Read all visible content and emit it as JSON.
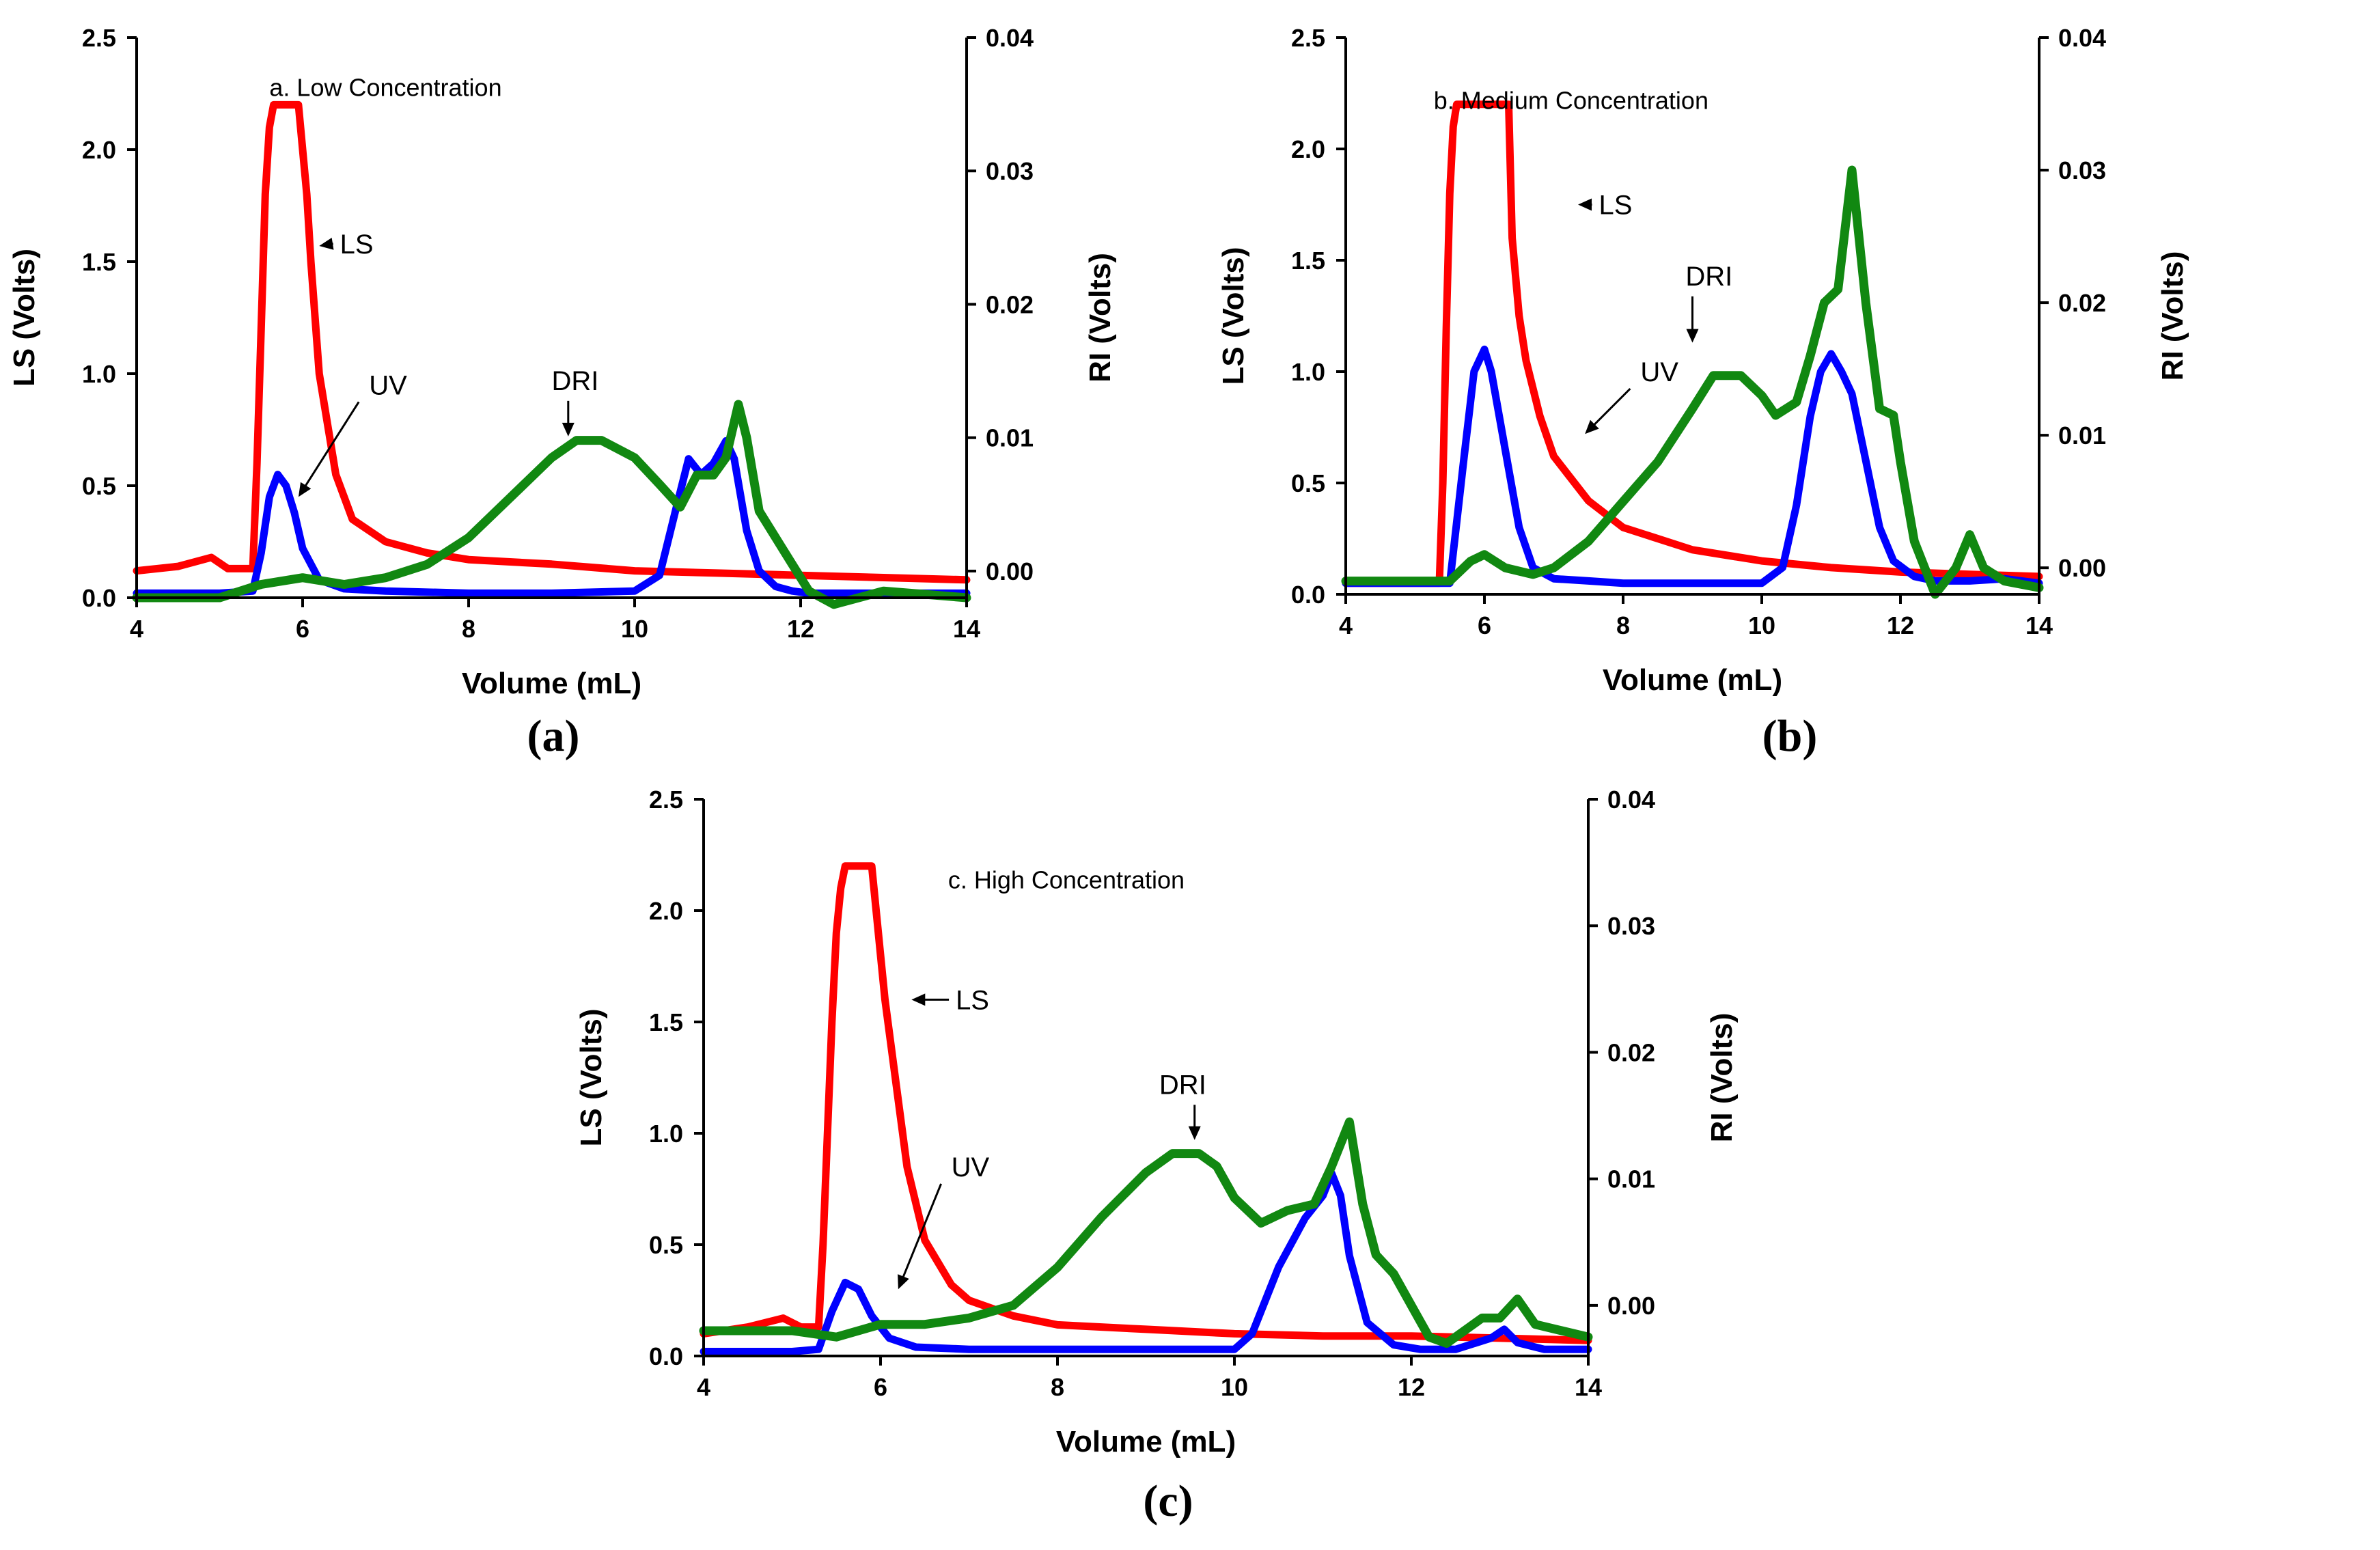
{
  "figure": {
    "captions": [
      "(a)",
      "(b)",
      "(c)"
    ]
  },
  "colors": {
    "LS": "#ff0000",
    "UV": "#0000ff",
    "DRI": "#118811"
  },
  "chart_data": [
    {
      "type": "line",
      "title": "a. Low Concentration",
      "xlabel": "Volume (mL)",
      "ylabel": "LS (Volts)",
      "y2label": "RI (Volts)",
      "xlim": [
        4,
        14
      ],
      "ylim": [
        0,
        2.5
      ],
      "y2lim": [
        -0.002,
        0.04
      ],
      "xticks": [
        "4",
        "6",
        "8",
        "10",
        "12",
        "14"
      ],
      "yticks": [
        "0.0",
        "0.5",
        "1.0",
        "1.5",
        "2.0",
        "2.5"
      ],
      "y2ticks": [
        "0.00",
        "0.01",
        "0.02",
        "0.03",
        "0.04"
      ],
      "series": [
        {
          "name": "LS",
          "axis": "left",
          "x": [
            4.0,
            4.5,
            4.9,
            5.1,
            5.4,
            5.45,
            5.5,
            5.55,
            5.6,
            5.65,
            5.7,
            5.75,
            5.85,
            5.95,
            6.05,
            6.1,
            6.2,
            6.4,
            6.6,
            7.0,
            7.5,
            8.0,
            9.0,
            10.0,
            11.0,
            12.0,
            13.0,
            14.0
          ],
          "values": [
            0.12,
            0.14,
            0.18,
            0.13,
            0.13,
            0.6,
            1.2,
            1.8,
            2.1,
            2.2,
            2.2,
            2.2,
            2.2,
            2.2,
            1.8,
            1.5,
            1.0,
            0.55,
            0.35,
            0.25,
            0.2,
            0.17,
            0.15,
            0.12,
            0.11,
            0.1,
            0.09,
            0.08
          ]
        },
        {
          "name": "UV",
          "axis": "left",
          "x": [
            4.0,
            5.0,
            5.4,
            5.5,
            5.6,
            5.7,
            5.8,
            5.9,
            6.0,
            6.2,
            6.5,
            7.0,
            8.0,
            9.0,
            10.0,
            10.3,
            10.5,
            10.65,
            10.8,
            10.95,
            11.1,
            11.2,
            11.35,
            11.5,
            11.7,
            11.9,
            12.1,
            12.5,
            13.0,
            14.0
          ],
          "values": [
            0.02,
            0.02,
            0.03,
            0.2,
            0.45,
            0.55,
            0.5,
            0.38,
            0.22,
            0.08,
            0.04,
            0.03,
            0.02,
            0.02,
            0.03,
            0.1,
            0.4,
            0.62,
            0.55,
            0.6,
            0.7,
            0.62,
            0.3,
            0.12,
            0.05,
            0.03,
            0.02,
            0.02,
            0.02,
            0.02
          ]
        },
        {
          "name": "DRI",
          "axis": "right",
          "x": [
            4.0,
            5.0,
            5.5,
            6.0,
            6.5,
            7.0,
            7.5,
            8.0,
            8.5,
            9.0,
            9.3,
            9.6,
            10.0,
            10.3,
            10.55,
            10.75,
            10.95,
            11.1,
            11.25,
            11.35,
            11.5,
            11.7,
            11.9,
            12.1,
            12.4,
            13.0,
            14.0
          ],
          "values": [
            -0.002,
            -0.002,
            -0.001,
            -0.0005,
            -0.001,
            -0.0005,
            0.0005,
            0.0025,
            0.0055,
            0.0085,
            0.0098,
            0.0098,
            0.0085,
            0.0065,
            0.0048,
            0.0072,
            0.0072,
            0.0085,
            0.0125,
            0.01,
            0.0045,
            0.0025,
            0.0005,
            -0.0015,
            -0.0025,
            -0.0015,
            -0.002
          ]
        }
      ],
      "annotations": [
        {
          "text": "LS",
          "arrow": "left"
        },
        {
          "text": "UV",
          "arrow": "down-left"
        },
        {
          "text": "DRI",
          "arrow": "down"
        }
      ]
    },
    {
      "type": "line",
      "title": "b. Medium Concentration",
      "xlabel": "Volume (mL)",
      "ylabel": "LS (Volts)",
      "y2label": "RI (Volts)",
      "xlim": [
        4,
        14
      ],
      "ylim": [
        0,
        2.5
      ],
      "y2lim": [
        -0.002,
        0.04
      ],
      "xticks": [
        "4",
        "6",
        "8",
        "10",
        "12",
        "14"
      ],
      "yticks": [
        "0.0",
        "0.5",
        "1.0",
        "1.5",
        "2.0",
        "2.5"
      ],
      "y2ticks": [
        "0.00",
        "0.01",
        "0.02",
        "0.03",
        "0.04"
      ],
      "series": [
        {
          "name": "LS",
          "axis": "left",
          "x": [
            4.0,
            5.0,
            5.35,
            5.4,
            5.45,
            5.5,
            5.55,
            5.6,
            5.7,
            6.0,
            6.2,
            6.35,
            6.4,
            6.5,
            6.6,
            6.8,
            7.0,
            7.5,
            8.0,
            9.0,
            10.0,
            11.0,
            12.0,
            13.0,
            14.0
          ],
          "values": [
            0.05,
            0.05,
            0.05,
            0.5,
            1.2,
            1.8,
            2.1,
            2.2,
            2.2,
            2.2,
            2.2,
            2.2,
            1.6,
            1.25,
            1.05,
            0.8,
            0.62,
            0.42,
            0.3,
            0.2,
            0.15,
            0.12,
            0.1,
            0.09,
            0.08
          ]
        },
        {
          "name": "UV",
          "axis": "left",
          "x": [
            4.0,
            5.5,
            5.7,
            5.85,
            6.0,
            6.1,
            6.3,
            6.5,
            6.7,
            7.0,
            7.5,
            8.0,
            9.0,
            10.0,
            10.3,
            10.5,
            10.7,
            10.85,
            11.0,
            11.15,
            11.3,
            11.5,
            11.7,
            11.9,
            12.2,
            12.5,
            13.0,
            13.5,
            14.0
          ],
          "values": [
            0.05,
            0.05,
            0.6,
            1.0,
            1.1,
            1.0,
            0.65,
            0.3,
            0.12,
            0.07,
            0.06,
            0.05,
            0.05,
            0.05,
            0.12,
            0.4,
            0.8,
            1.0,
            1.08,
            1.0,
            0.9,
            0.6,
            0.3,
            0.15,
            0.08,
            0.06,
            0.06,
            0.07,
            0.05
          ]
        },
        {
          "name": "DRI",
          "axis": "right",
          "x": [
            4.0,
            5.0,
            5.5,
            5.8,
            6.0,
            6.3,
            6.7,
            7.0,
            7.5,
            8.0,
            8.5,
            9.0,
            9.3,
            9.7,
            10.0,
            10.2,
            10.5,
            10.7,
            10.9,
            11.1,
            11.3,
            11.5,
            11.7,
            11.9,
            12.0,
            12.2,
            12.5,
            12.8,
            13.0,
            13.2,
            13.5,
            14.0
          ],
          "values": [
            -0.001,
            -0.001,
            -0.001,
            0.0005,
            0.001,
            0.0,
            -0.0005,
            0.0,
            0.002,
            0.005,
            0.008,
            0.012,
            0.0145,
            0.0145,
            0.013,
            0.0115,
            0.0125,
            0.016,
            0.02,
            0.021,
            0.03,
            0.02,
            0.012,
            0.0115,
            0.008,
            0.002,
            -0.002,
            0.0,
            0.0025,
            0.0,
            -0.001,
            -0.0015
          ]
        }
      ],
      "annotations": [
        {
          "text": "LS",
          "arrow": "left"
        },
        {
          "text": "UV",
          "arrow": "down-left"
        },
        {
          "text": "DRI",
          "arrow": "down"
        }
      ]
    },
    {
      "type": "line",
      "title": "c. High Concentration",
      "xlabel": "Volume (mL)",
      "ylabel": "LS (Volts)",
      "y2label": "RI (Volts)",
      "xlim": [
        4,
        14
      ],
      "ylim": [
        0,
        2.5
      ],
      "y2lim": [
        -0.004,
        0.04
      ],
      "xticks": [
        "4",
        "6",
        "8",
        "10",
        "12",
        "14"
      ],
      "yticks": [
        "0.0",
        "0.5",
        "1.0",
        "1.5",
        "2.0",
        "2.5"
      ],
      "y2ticks": [
        "0.00",
        "0.01",
        "0.02",
        "0.03",
        "0.04"
      ],
      "series": [
        {
          "name": "LS",
          "axis": "left",
          "x": [
            4.0,
            4.5,
            4.9,
            5.1,
            5.3,
            5.35,
            5.4,
            5.45,
            5.5,
            5.55,
            5.6,
            5.9,
            6.0,
            6.05,
            6.15,
            6.3,
            6.5,
            6.8,
            7.0,
            7.5,
            8.0,
            9.0,
            10.0,
            11.0,
            12.0,
            13.0,
            14.0
          ],
          "values": [
            0.1,
            0.13,
            0.17,
            0.13,
            0.13,
            0.5,
            1.0,
            1.5,
            1.9,
            2.1,
            2.2,
            2.2,
            1.8,
            1.6,
            1.3,
            0.85,
            0.52,
            0.32,
            0.25,
            0.18,
            0.14,
            0.12,
            0.1,
            0.09,
            0.09,
            0.08,
            0.07
          ]
        },
        {
          "name": "UV",
          "axis": "left",
          "x": [
            4.0,
            5.0,
            5.3,
            5.45,
            5.6,
            5.75,
            5.9,
            6.1,
            6.4,
            7.0,
            8.0,
            9.0,
            10.0,
            10.2,
            10.5,
            10.8,
            11.0,
            11.1,
            11.2,
            11.3,
            11.5,
            11.8,
            12.1,
            12.5,
            12.9,
            13.05,
            13.2,
            13.5,
            14.0
          ],
          "values": [
            0.02,
            0.02,
            0.03,
            0.2,
            0.33,
            0.3,
            0.18,
            0.08,
            0.04,
            0.03,
            0.03,
            0.03,
            0.03,
            0.1,
            0.4,
            0.62,
            0.72,
            0.82,
            0.72,
            0.45,
            0.15,
            0.05,
            0.03,
            0.03,
            0.08,
            0.12,
            0.06,
            0.03,
            0.03
          ]
        },
        {
          "name": "DRI",
          "axis": "right",
          "x": [
            4.0,
            5.0,
            5.5,
            6.0,
            6.5,
            7.0,
            7.5,
            8.0,
            8.5,
            9.0,
            9.3,
            9.6,
            9.8,
            10.0,
            10.3,
            10.6,
            10.9,
            11.1,
            11.3,
            11.45,
            11.6,
            11.8,
            12.0,
            12.2,
            12.4,
            12.8,
            13.0,
            13.2,
            13.4,
            13.7,
            14.0
          ],
          "values": [
            -0.002,
            -0.002,
            -0.0025,
            -0.0015,
            -0.0015,
            -0.001,
            0.0,
            0.003,
            0.007,
            0.0105,
            0.012,
            0.012,
            0.011,
            0.0085,
            0.0065,
            0.0075,
            0.008,
            0.011,
            0.0145,
            0.008,
            0.004,
            0.0025,
            0.0,
            -0.0025,
            -0.003,
            -0.001,
            -0.001,
            0.0005,
            -0.0015,
            -0.002,
            -0.0025
          ]
        }
      ],
      "annotations": [
        {
          "text": "LS",
          "arrow": "left"
        },
        {
          "text": "UV",
          "arrow": "down-left"
        },
        {
          "text": "DRI",
          "arrow": "down"
        }
      ]
    }
  ]
}
